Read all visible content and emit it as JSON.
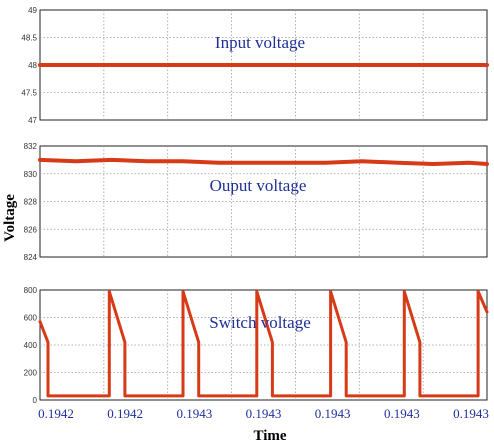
{
  "figure": {
    "ylabel": "Voltage",
    "xlabel": "Time",
    "x_tick_labels": [
      "0.1942",
      "0.1942",
      "0.1943",
      "0.1943",
      "0.1943",
      "0.1943",
      "0.1943"
    ]
  },
  "chart_data": [
    {
      "type": "line",
      "annotation": "Input voltage",
      "ylim": [
        47,
        49
      ],
      "yticks": [
        47,
        47.5,
        48,
        48.5,
        49
      ],
      "grid": true,
      "series": [
        {
          "color": "#d63a17",
          "x": [
            0,
            1
          ],
          "y": [
            48,
            48
          ]
        }
      ]
    },
    {
      "type": "line",
      "annotation": "Ouput voltage",
      "ylim": [
        824,
        832
      ],
      "yticks": [
        824,
        826,
        828,
        830,
        832
      ],
      "grid": true,
      "series": [
        {
          "color": "#d63a17",
          "x": [
            0,
            0.08,
            0.16,
            0.24,
            0.32,
            0.4,
            0.48,
            0.56,
            0.64,
            0.72,
            0.8,
            0.88,
            0.96,
            1
          ],
          "y": [
            831.0,
            830.9,
            831.0,
            830.9,
            830.9,
            830.8,
            830.8,
            830.8,
            830.8,
            830.9,
            830.8,
            830.7,
            830.8,
            830.7
          ]
        }
      ]
    },
    {
      "type": "line",
      "annotation": "Switch voltage",
      "ylim": [
        0,
        800
      ],
      "yticks": [
        0,
        200,
        400,
        600,
        800
      ],
      "grid": true,
      "series": [
        {
          "color": "#d63a17",
          "x": [
            0,
            0.018,
            0.018,
            0.155,
            0.155,
            0.19,
            0.19,
            0.32,
            0.32,
            0.355,
            0.355,
            0.485,
            0.485,
            0.52,
            0.52,
            0.65,
            0.65,
            0.685,
            0.685,
            0.815,
            0.815,
            0.85,
            0.85,
            0.98,
            0.98,
            1
          ],
          "y": [
            570,
            420,
            30,
            30,
            790,
            420,
            30,
            30,
            790,
            420,
            30,
            30,
            790,
            420,
            30,
            30,
            790,
            420,
            30,
            30,
            790,
            420,
            30,
            30,
            790,
            640
          ]
        }
      ]
    }
  ]
}
